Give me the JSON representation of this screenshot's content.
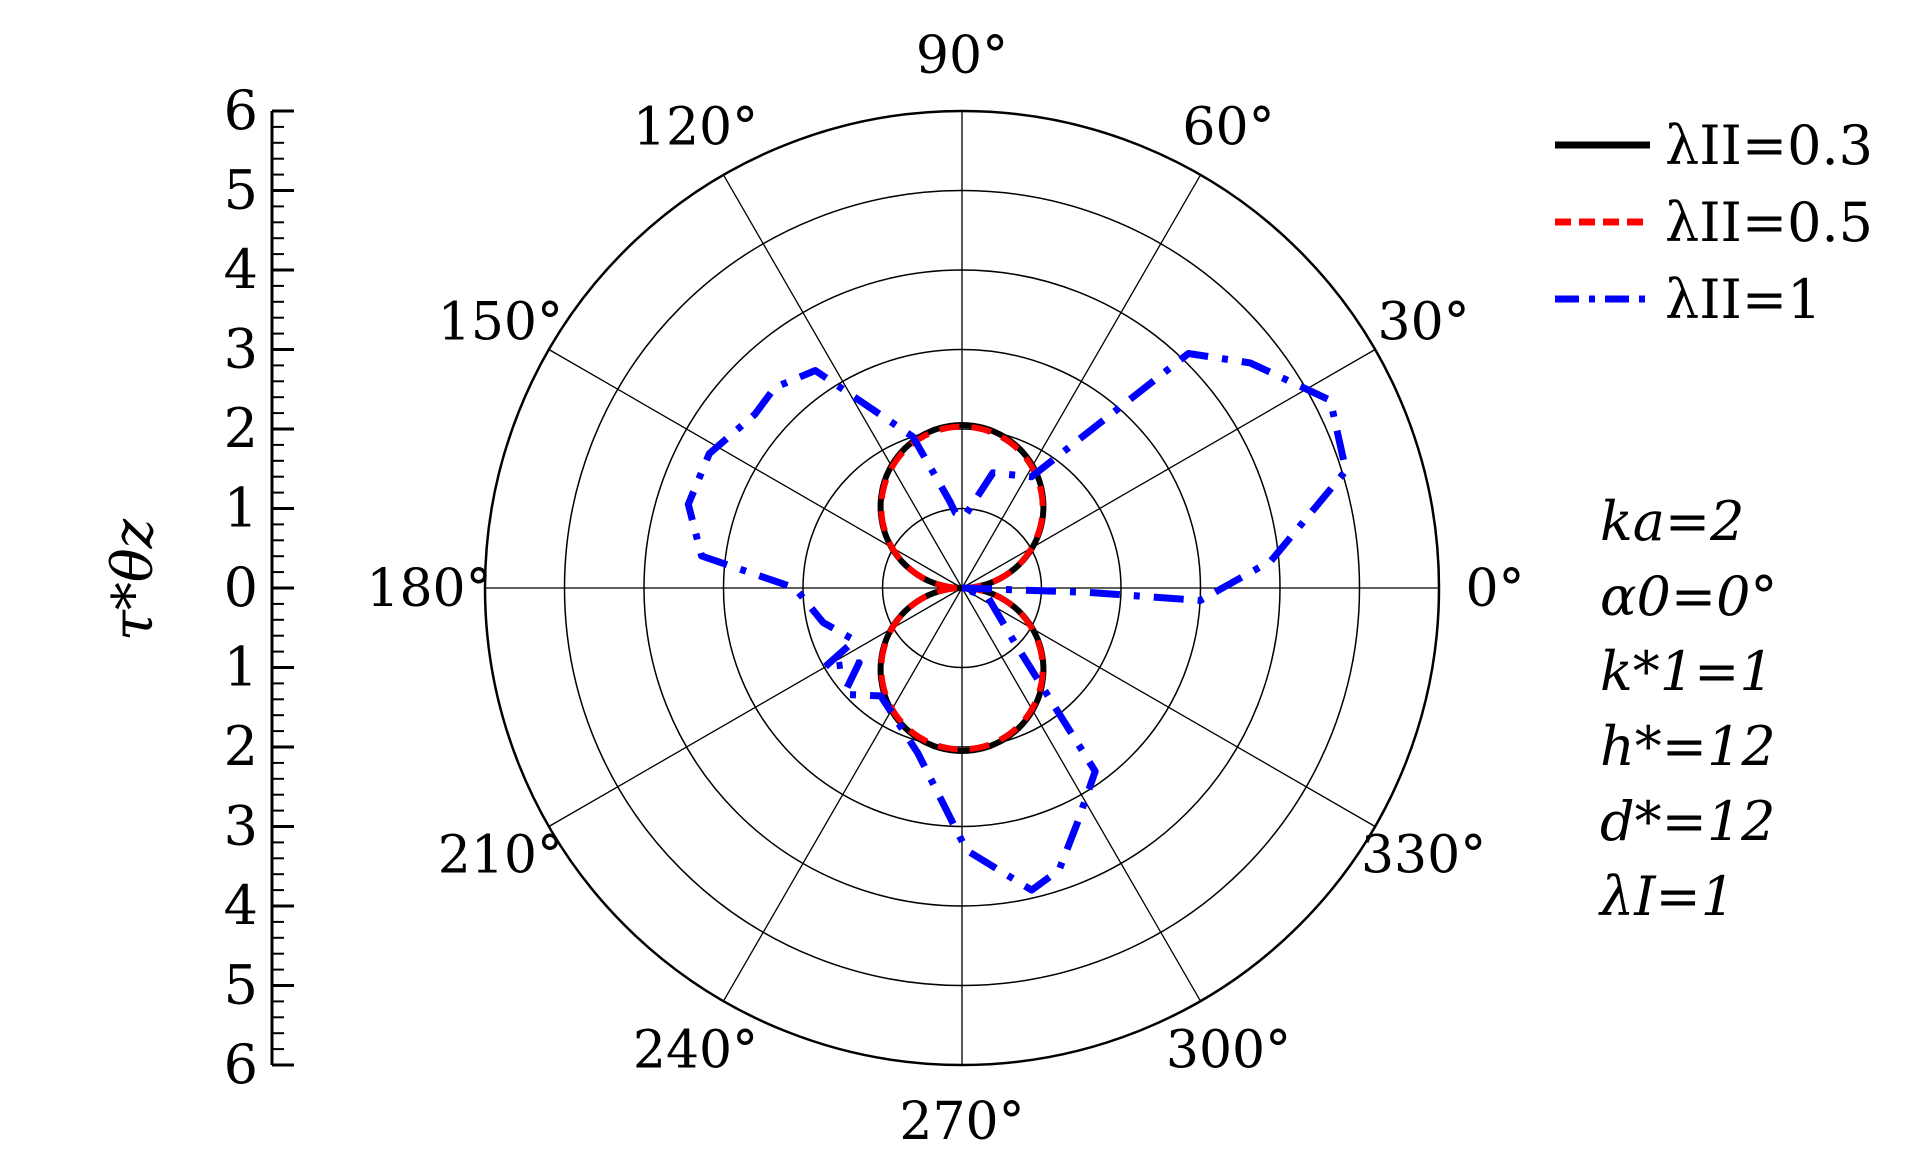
{
  "chart_data": {
    "type": "polar-line",
    "radial_axis": {
      "label": "τ*θz",
      "range": [
        0,
        6
      ],
      "tick_labels_upper": [
        "0",
        "1",
        "2",
        "3",
        "4",
        "5",
        "6"
      ],
      "tick_labels_lower": [
        "1",
        "2",
        "3",
        "4",
        "5",
        "6"
      ],
      "grid_rings": [
        1,
        2,
        3,
        4,
        5,
        6
      ]
    },
    "angular_axis": {
      "unit": "degrees",
      "tick_labels": [
        "0°",
        "30°",
        "60°",
        "90°",
        "120°",
        "150°",
        "180°",
        "210°",
        "240°",
        "270°",
        "300°",
        "330°"
      ],
      "tick_values": [
        0,
        30,
        60,
        90,
        120,
        150,
        180,
        210,
        240,
        270,
        300,
        330
      ]
    },
    "grid": true,
    "legend_position": "top-right",
    "series": [
      {
        "name": "λII=0.3",
        "color": "#000000",
        "style": "solid",
        "curve": "two-lobe",
        "amplitude": 2.05,
        "points": [
          [
            0,
            0
          ],
          [
            15,
            0.53
          ],
          [
            30,
            1.03
          ],
          [
            45,
            1.45
          ],
          [
            60,
            1.78
          ],
          [
            75,
            1.98
          ],
          [
            90,
            2.05
          ],
          [
            105,
            1.98
          ],
          [
            120,
            1.78
          ],
          [
            135,
            1.45
          ],
          [
            150,
            1.03
          ],
          [
            165,
            0.53
          ],
          [
            180,
            0
          ],
          [
            195,
            0.53
          ],
          [
            210,
            1.03
          ],
          [
            225,
            1.45
          ],
          [
            240,
            1.78
          ],
          [
            255,
            1.98
          ],
          [
            270,
            2.05
          ],
          [
            285,
            1.98
          ],
          [
            300,
            1.78
          ],
          [
            315,
            1.45
          ],
          [
            330,
            1.03
          ],
          [
            345,
            0.53
          ],
          [
            360,
            0
          ]
        ]
      },
      {
        "name": "λII=0.5",
        "color": "#ff0000",
        "style": "dashed",
        "curve": "two-lobe",
        "amplitude": 2.03,
        "points": [
          [
            0,
            0
          ],
          [
            15,
            0.53
          ],
          [
            30,
            1.02
          ],
          [
            45,
            1.44
          ],
          [
            60,
            1.76
          ],
          [
            75,
            1.96
          ],
          [
            90,
            2.03
          ],
          [
            105,
            1.96
          ],
          [
            120,
            1.76
          ],
          [
            135,
            1.44
          ],
          [
            150,
            1.02
          ],
          [
            165,
            0.53
          ],
          [
            180,
            0
          ],
          [
            195,
            0.53
          ],
          [
            210,
            1.02
          ],
          [
            225,
            1.44
          ],
          [
            240,
            1.76
          ],
          [
            255,
            1.96
          ],
          [
            270,
            2.03
          ],
          [
            285,
            1.96
          ],
          [
            300,
            1.76
          ],
          [
            315,
            1.44
          ],
          [
            330,
            1.02
          ],
          [
            345,
            0.53
          ],
          [
            360,
            0
          ]
        ]
      },
      {
        "name": "λII=1",
        "color": "#0000ff",
        "style": "dash-dot",
        "curve": "points",
        "points": [
          [
            0,
            0
          ],
          [
            -2,
            1.6
          ],
          [
            -3,
            3.0
          ],
          [
            5,
            3.9
          ],
          [
            17,
            5.05
          ],
          [
            27,
            5.2
          ],
          [
            38,
            4.6
          ],
          [
            46,
            4.1
          ],
          [
            58,
            1.65
          ],
          [
            75,
            1.5
          ],
          [
            88,
            0.9
          ],
          [
            95,
            0.95
          ],
          [
            98,
            1.1
          ],
          [
            108,
            2.0
          ],
          [
            124,
            3.3
          ],
          [
            133,
            3.45
          ],
          [
            140,
            3.4
          ],
          [
            152,
            3.6
          ],
          [
            163,
            3.6
          ],
          [
            173,
            3.3
          ],
          [
            180,
            2.1
          ],
          [
            194,
            1.8
          ],
          [
            206,
            1.5
          ],
          [
            210,
            2.0
          ],
          [
            216,
            1.6
          ],
          [
            222,
            2.0
          ],
          [
            233,
            1.7
          ],
          [
            255,
            2.15
          ],
          [
            271,
            3.3
          ],
          [
            283,
            3.9
          ],
          [
            289,
            3.75
          ],
          [
            296,
            3.3
          ],
          [
            306,
            2.85
          ],
          [
            314,
            0.95
          ],
          [
            340,
            0.35
          ],
          [
            360,
            0
          ]
        ]
      }
    ],
    "annotations": [
      "ka=2",
      "α0=0°",
      "k*1=1",
      "h*=12",
      "d*=12",
      "λI=1"
    ]
  },
  "legend": [
    {
      "label": "λII=0.3"
    },
    {
      "label": "λII=0.5"
    },
    {
      "label": "λII=1"
    }
  ]
}
